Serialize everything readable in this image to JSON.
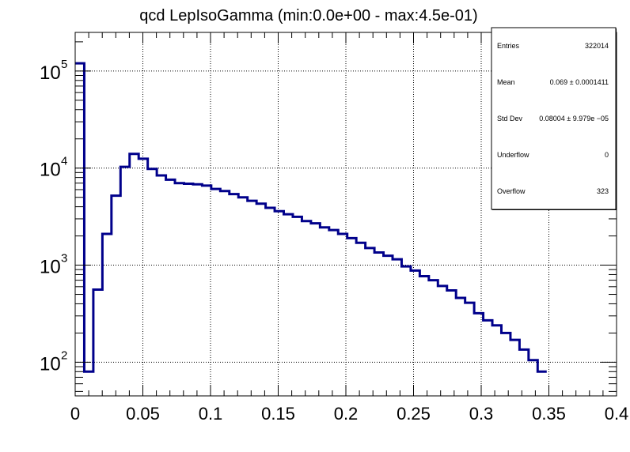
{
  "chart_data": {
    "type": "histogram",
    "title": "qcd LepIsoGamma (min:0.0e+00 - max:4.5e-01)",
    "xlabel": "",
    "ylabel": "",
    "xlim": [
      0,
      0.4
    ],
    "ylim": [
      45,
      250000
    ],
    "y_scale": "log",
    "grid": true,
    "line_color": "#00008b",
    "x_ticks": [
      0,
      0.05,
      0.1,
      0.15,
      0.2,
      0.25,
      0.3,
      0.35,
      0.4
    ],
    "x_tick_labels": [
      "0",
      "0.05",
      "0.1",
      "0.15",
      "0.2",
      "0.25",
      "0.3",
      "0.35",
      "0.4"
    ],
    "y_ticks": [
      {
        "value": 100,
        "base": "10",
        "exp": "2"
      },
      {
        "value": 1000,
        "base": "10",
        "exp": "3"
      },
      {
        "value": 10000,
        "base": "10",
        "exp": "4"
      },
      {
        "value": 100000,
        "base": "10",
        "exp": "5"
      }
    ],
    "bin_width": 0.0067,
    "bin_values": [
      120000,
      80,
      560,
      2100,
      5200,
      10300,
      14000,
      12500,
      9800,
      8400,
      7600,
      7000,
      6900,
      6800,
      6600,
      6100,
      5800,
      5400,
      5000,
      4600,
      4300,
      3900,
      3600,
      3350,
      3150,
      2850,
      2700,
      2450,
      2300,
      2100,
      1900,
      1700,
      1500,
      1350,
      1250,
      1150,
      970,
      880,
      770,
      700,
      610,
      550,
      460,
      410,
      320,
      270,
      240,
      200,
      170,
      135,
      105,
      80
    ],
    "stats": [
      {
        "label": "Entries",
        "value": "322014"
      },
      {
        "label": "Mean",
        "value": "0.069  ± 0.0001411"
      },
      {
        "label": "Std Dev",
        "value": "0.08004  ± 9.979e −05"
      },
      {
        "label": "Underflow",
        "value": "0"
      },
      {
        "label": "Overflow",
        "value": "323"
      }
    ]
  }
}
